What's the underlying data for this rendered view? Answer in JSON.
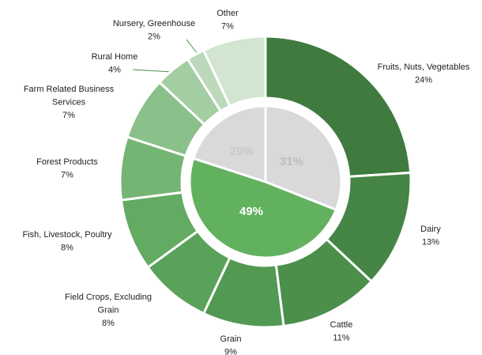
{
  "chart_data": {
    "type": "nested-donut",
    "categories": [
      [
        "Fruits, Nuts, Vegetables"
      ],
      [
        "Dairy"
      ],
      [
        "Cattle"
      ],
      [
        "Grain"
      ],
      [
        "Field Crops, Excluding",
        "Grain"
      ],
      [
        "Fish, Livestock, Poultry"
      ],
      [
        "Forest Products"
      ],
      [
        "Farm Related Business",
        "Services"
      ],
      [
        "Rural Home"
      ],
      [
        "Nursery, Greenhouse"
      ],
      [
        "Other"
      ]
    ],
    "values": [
      24,
      13,
      11,
      9,
      8,
      8,
      7,
      7,
      4,
      2,
      7
    ],
    "value_labels": [
      "24%",
      "13%",
      "11%",
      "9%",
      "8%",
      "8%",
      "7%",
      "7%",
      "4%",
      "2%",
      "7%"
    ],
    "colors": [
      "#3f7a3f",
      "#458545",
      "#4b8f4b",
      "#529952",
      "#5aa25a",
      "#63aa62",
      "#74b573",
      "#8ac089",
      "#a3cda2",
      "#bcd9bb",
      "#d1e5d0"
    ],
    "inner": {
      "values": [
        31,
        49,
        20
      ],
      "value_labels": [
        "31%",
        "49%",
        "20%"
      ],
      "colors": [
        "#d9d9d9",
        "#62b15f",
        "#d9d9d9"
      ]
    }
  }
}
